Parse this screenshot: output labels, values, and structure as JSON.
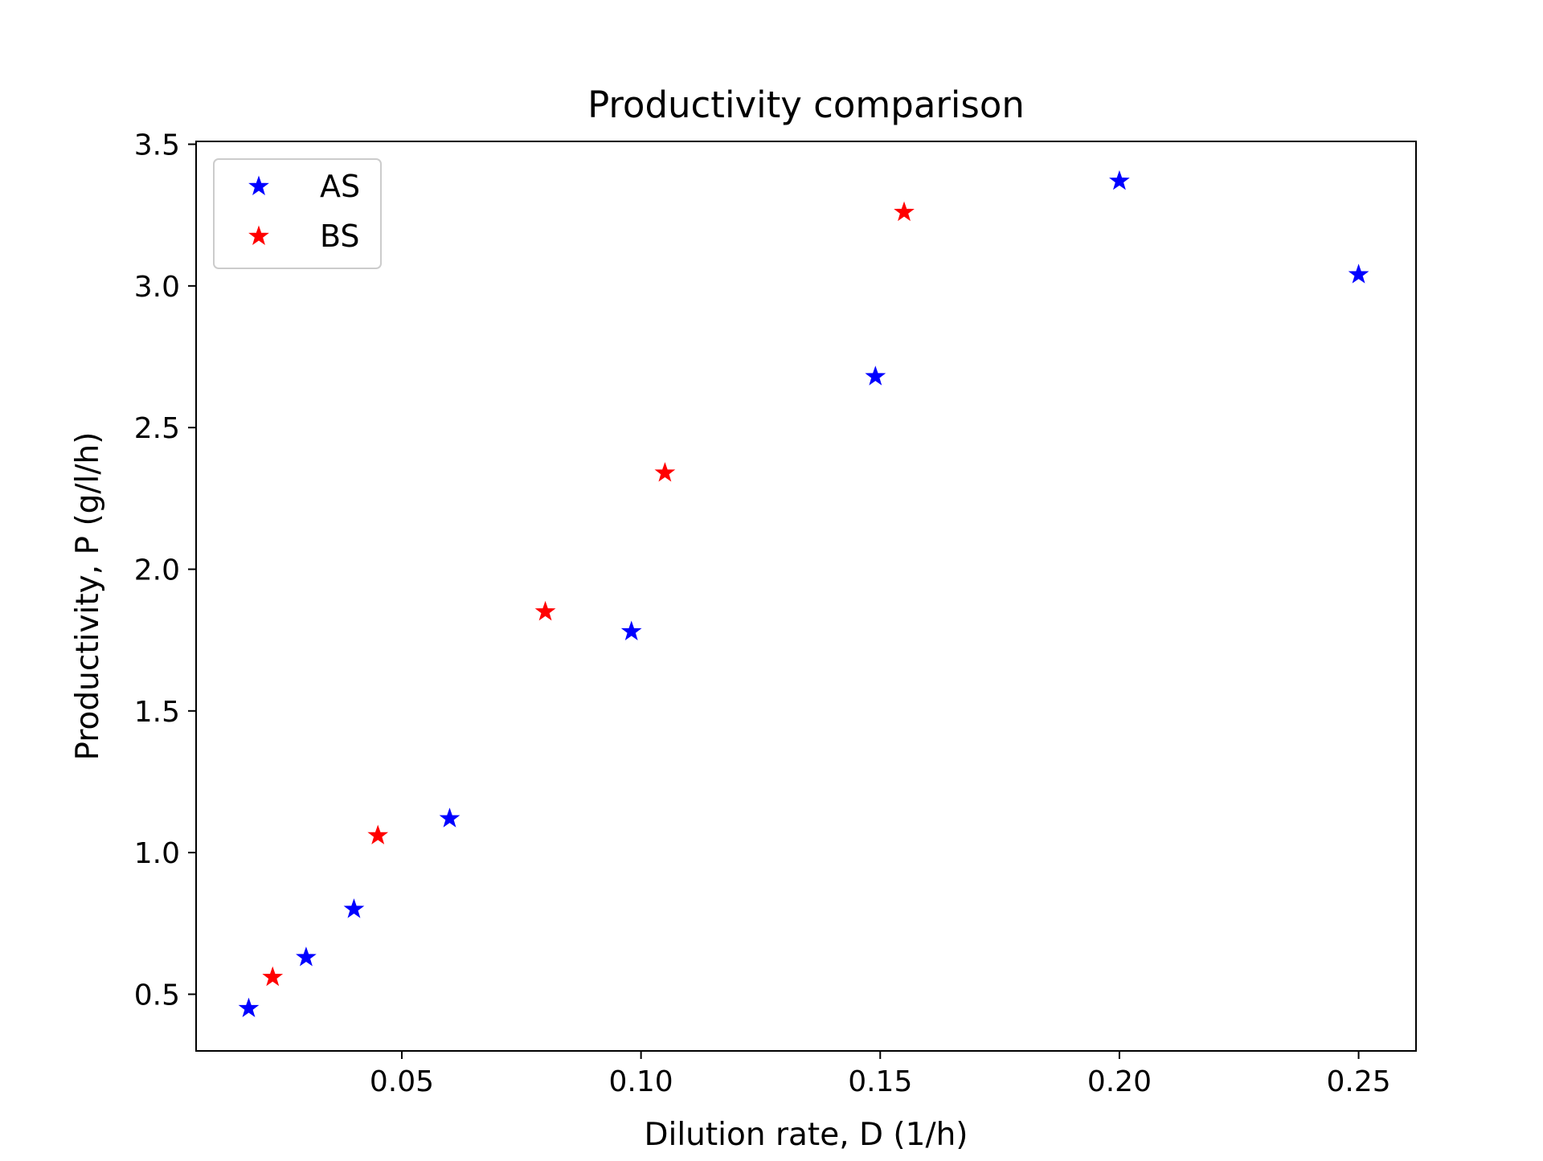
{
  "chart_data": {
    "type": "scatter",
    "title": "Productivity comparison",
    "xlabel": "Dilution rate, D (1/h)",
    "ylabel": "Productivity, P (g/l/h)",
    "xlim": [
      0.007,
      0.262
    ],
    "ylim": [
      0.3,
      3.51
    ],
    "xticks": [
      "0.05",
      "0.10",
      "0.15",
      "0.20",
      "0.25"
    ],
    "yticks": [
      "0.5",
      "1.0",
      "1.5",
      "2.0",
      "2.5",
      "3.0",
      "3.5"
    ],
    "grid": false,
    "legend": "top-left",
    "marker": "star",
    "series": [
      {
        "name": "AS",
        "color": "#0000ff",
        "x": [
          0.018,
          0.03,
          0.04,
          0.06,
          0.098,
          0.149,
          0.2,
          0.25
        ],
        "y": [
          0.45,
          0.63,
          0.8,
          1.12,
          1.78,
          2.68,
          3.37,
          3.04
        ]
      },
      {
        "name": "BS",
        "color": "#ff0000",
        "x": [
          0.023,
          0.045,
          0.08,
          0.105,
          0.155
        ],
        "y": [
          0.56,
          1.06,
          1.85,
          2.34,
          3.26
        ]
      }
    ]
  }
}
